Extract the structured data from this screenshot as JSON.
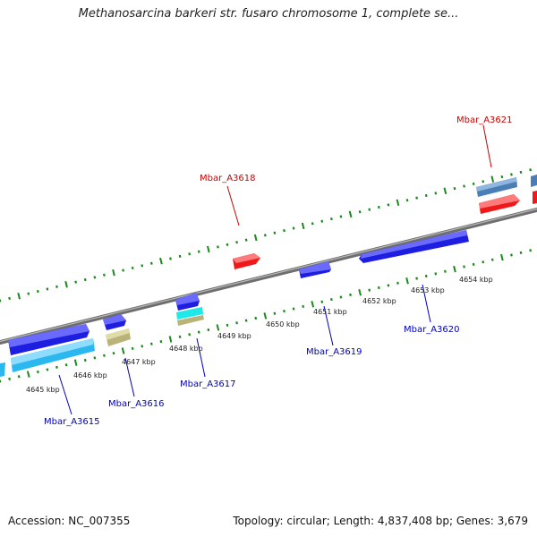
{
  "title": "Methanosarcina barkeri str. fusaro chromosome 1, complete se...",
  "footer": {
    "accession": "Accession: NC_007355",
    "summary": "Topology: circular; Length: 4,837,408 bp; Genes: 3,679"
  },
  "colors": {
    "backbone": "#8a8a8a",
    "ticks": "#1a8a1a",
    "gene_blue": "#1e1ee0",
    "gene_cyan": "#2ab8ee",
    "gene_red": "#ee1a1a",
    "gene_steel": "#4a7fb5",
    "gene_khaki": "#b9b37a",
    "gene_teal": "#1ee8e8",
    "label_red": "#cc0000",
    "label_blue": "#0000bb"
  },
  "kbp_ticks": [
    "4645 kbp",
    "4646 kbp",
    "4647 kbp",
    "4648 kbp",
    "4649 kbp",
    "4650 kbp",
    "4651 kbp",
    "4652 kbp",
    "4653 kbp",
    "4654 kbp"
  ],
  "gene_labels": {
    "g3615": "Mbar_A3615",
    "g3616": "Mbar_A3616",
    "g3617": "Mbar_A3617",
    "g3618": "Mbar_A3618",
    "g3619": "Mbar_A3619",
    "g3620": "Mbar_A3620",
    "g3621": "Mbar_A3621"
  }
}
